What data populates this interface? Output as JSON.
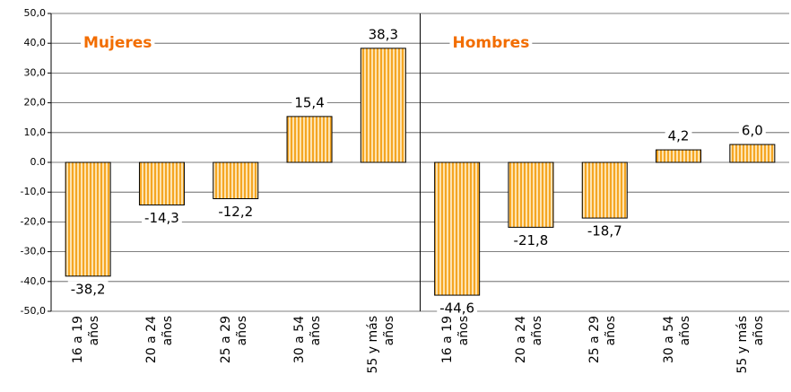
{
  "chart_data": {
    "type": "bar",
    "ylim": [
      -50,
      50
    ],
    "yticks": [
      {
        "value": -50,
        "label": "-50,0"
      },
      {
        "value": -40,
        "label": "-40,0"
      },
      {
        "value": -30,
        "label": "-30,0"
      },
      {
        "value": -20,
        "label": "-20,0"
      },
      {
        "value": -10,
        "label": "-10,0"
      },
      {
        "value": 0,
        "label": "0.0"
      },
      {
        "value": 10,
        "label": "10,0"
      },
      {
        "value": 20,
        "label": "20,0"
      },
      {
        "value": 30,
        "label": "30,0"
      },
      {
        "value": 40,
        "label": "40,0"
      },
      {
        "value": 50,
        "label": "50,0"
      }
    ],
    "grid": true,
    "color": "#f5a623",
    "groups": [
      {
        "name": "Mujeres",
        "categories": [
          "16 a 19 años",
          "20 a 24 años",
          "25 a 29 años",
          "30 a 54 años",
          "55 y más años"
        ],
        "values": [
          -38.2,
          -14.3,
          -12.2,
          15.4,
          38.3
        ],
        "value_labels": [
          "-38,2",
          "-14,3",
          "-12,2",
          "15,4",
          "38,3"
        ]
      },
      {
        "name": "Hombres",
        "categories": [
          "16 a 19 años",
          "20 a 24 años",
          "25 a 29 años",
          "30 a 54 años",
          "55 y más años"
        ],
        "values": [
          -44.6,
          -21.8,
          -18.7,
          4.2,
          6.0
        ],
        "value_labels": [
          "-44,6",
          "-21,8",
          "-18,7",
          "4,2",
          "6,0"
        ]
      }
    ]
  }
}
